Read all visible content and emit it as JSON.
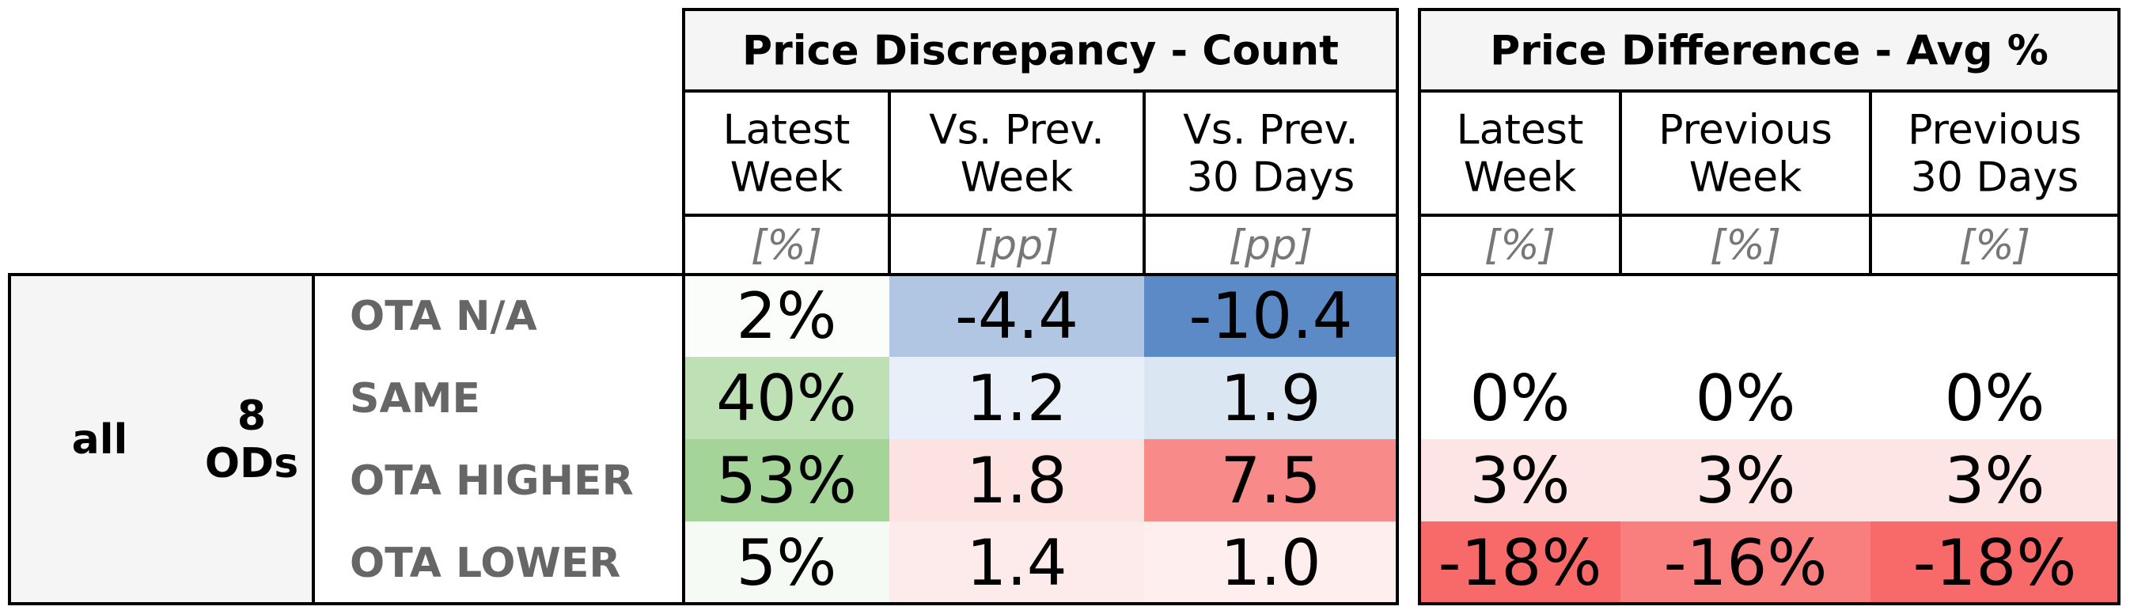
{
  "chart_data": {
    "type": "table",
    "row_group": {
      "label": "all",
      "count_label": "8\nODs"
    },
    "rows": [
      "OTA N/A",
      "SAME",
      "OTA HIGHER",
      "OTA LOWER"
    ],
    "tables": [
      {
        "title": "Price Discrepancy - Count",
        "columns": [
          {
            "header": "Latest\nWeek",
            "unit": "[%]"
          },
          {
            "header": "Vs. Prev.\nWeek",
            "unit": "[pp]"
          },
          {
            "header": "Vs. Prev.\n30 Days",
            "unit": "[pp]"
          }
        ],
        "values": [
          [
            2,
            -4.4,
            -10.4
          ],
          [
            40,
            1.2,
            1.9
          ],
          [
            53,
            1.8,
            7.5
          ],
          [
            5,
            1.4,
            1.0
          ]
        ],
        "display": [
          [
            "2%",
            "-4.4",
            "-10.4"
          ],
          [
            "40%",
            "1.2",
            "1.9"
          ],
          [
            "53%",
            "1.8",
            "7.5"
          ],
          [
            "5%",
            "1.4",
            "1.0"
          ]
        ],
        "colors": [
          [
            "#fbfdfb",
            "#b0c6e3",
            "#5b8ac6"
          ],
          [
            "#bde0b5",
            "#e8eff8",
            "#dbe6f3"
          ],
          [
            "#a5d498",
            "#fde2e2",
            "#f98a8a"
          ],
          [
            "#f5faf4",
            "#fdeaea",
            "#feeeee"
          ]
        ]
      },
      {
        "title": "Price Difference - Avg %",
        "columns": [
          {
            "header": "Latest\nWeek",
            "unit": "[%]"
          },
          {
            "header": "Previous\nWeek",
            "unit": "[%]"
          },
          {
            "header": "Previous\n30 Days",
            "unit": "[%]"
          }
        ],
        "values": [
          [
            null,
            null,
            null
          ],
          [
            0,
            0,
            0
          ],
          [
            3,
            3,
            3
          ],
          [
            -18,
            -16,
            -18
          ]
        ],
        "display": [
          [
            "",
            "",
            ""
          ],
          [
            "0%",
            "0%",
            "0%"
          ],
          [
            "3%",
            "3%",
            "3%"
          ],
          [
            "-18%",
            "-16%",
            "-18%"
          ]
        ],
        "colors": [
          [
            "#ffffff",
            "#ffffff",
            "#ffffff"
          ],
          [
            "#ffffff",
            "#ffffff",
            "#ffffff"
          ],
          [
            "#fde5e5",
            "#fde5e5",
            "#fde5e5"
          ],
          [
            "#f86a6a",
            "#f97f7f",
            "#f86a6a"
          ]
        ]
      }
    ]
  }
}
